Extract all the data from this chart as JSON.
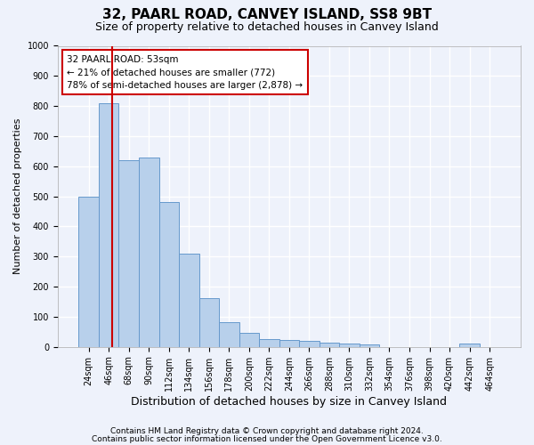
{
  "title1": "32, PAARL ROAD, CANVEY ISLAND, SS8 9BT",
  "title2": "Size of property relative to detached houses in Canvey Island",
  "xlabel": "Distribution of detached houses by size in Canvey Island",
  "ylabel": "Number of detached properties",
  "footnote1": "Contains HM Land Registry data © Crown copyright and database right 2024.",
  "footnote2": "Contains public sector information licensed under the Open Government Licence v3.0.",
  "bar_labels": [
    "24sqm",
    "46sqm",
    "68sqm",
    "90sqm",
    "112sqm",
    "134sqm",
    "156sqm",
    "178sqm",
    "200sqm",
    "222sqm",
    "244sqm",
    "266sqm",
    "288sqm",
    "310sqm",
    "332sqm",
    "354sqm",
    "376sqm",
    "398sqm",
    "420sqm",
    "442sqm",
    "464sqm"
  ],
  "bar_values": [
    500,
    810,
    620,
    630,
    480,
    310,
    163,
    82,
    46,
    25,
    22,
    20,
    13,
    12,
    8,
    0,
    0,
    0,
    0,
    10,
    0
  ],
  "bar_color": "#b8d0eb",
  "bar_edge_color": "#6699cc",
  "ylim": [
    0,
    1000
  ],
  "yticks": [
    0,
    100,
    200,
    300,
    400,
    500,
    600,
    700,
    800,
    900,
    1000
  ],
  "property_line_x": 1.18,
  "annotation_text": "32 PAARL ROAD: 53sqm\n← 21% of detached houses are smaller (772)\n78% of semi-detached houses are larger (2,878) →",
  "annotation_box_color": "#ffffff",
  "annotation_box_edge": "#cc0000",
  "vline_color": "#cc0000",
  "background_color": "#eef2fb",
  "plot_bg_color": "#eef2fb",
  "grid_color": "#ffffff",
  "title1_fontsize": 11,
  "title2_fontsize": 9,
  "xlabel_fontsize": 9,
  "ylabel_fontsize": 8,
  "tick_fontsize": 7,
  "footnote_fontsize": 6.5
}
